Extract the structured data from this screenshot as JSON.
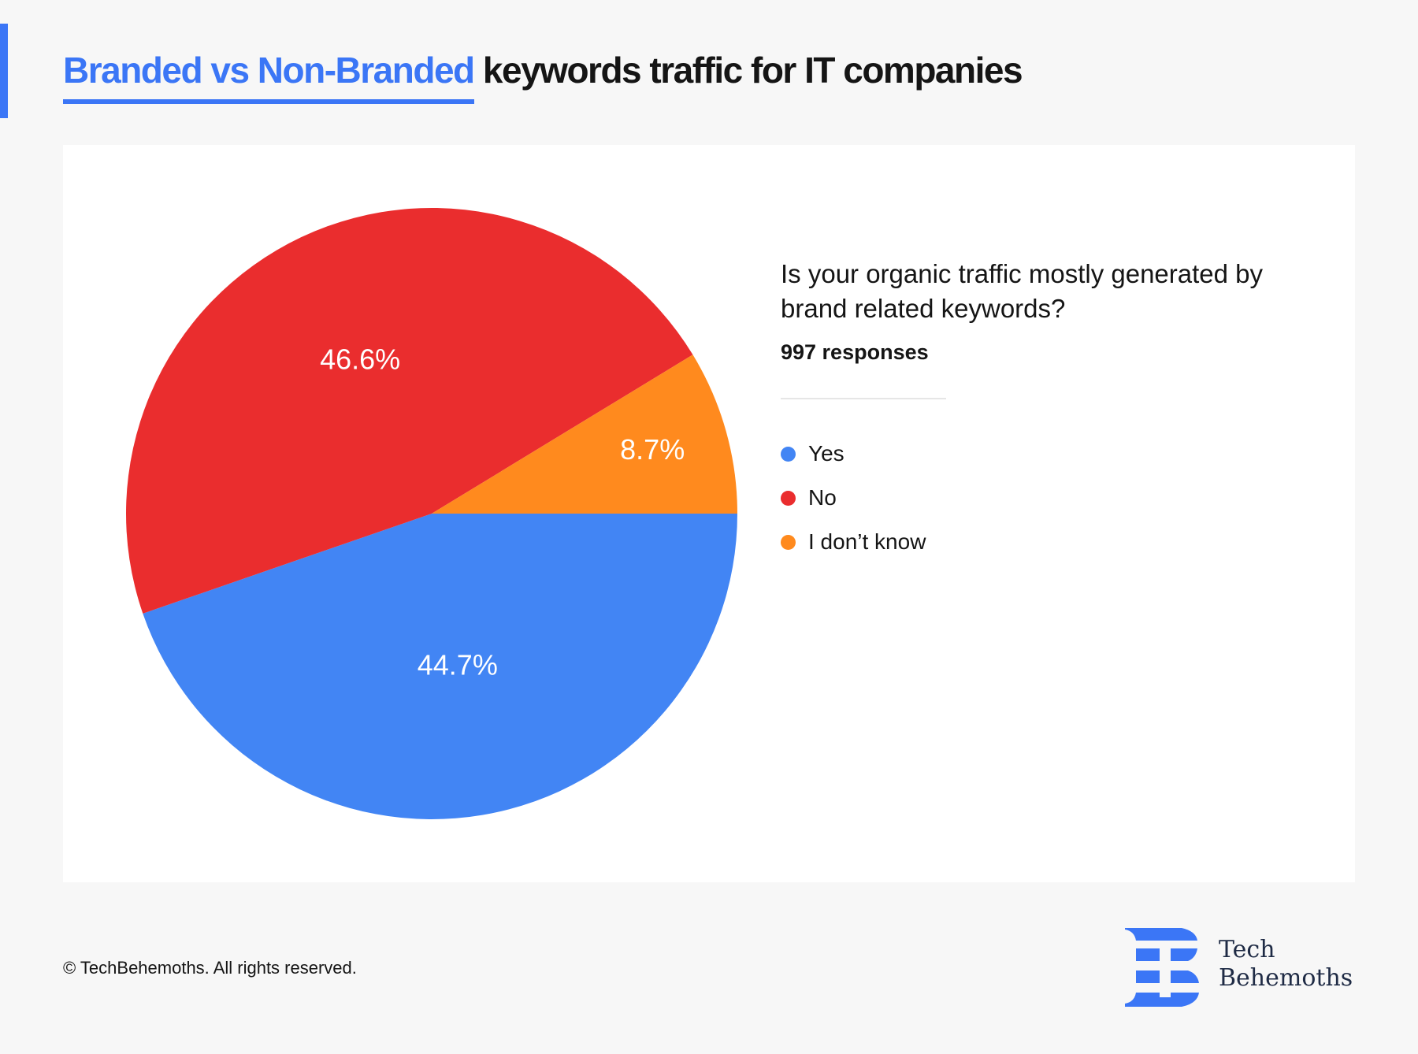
{
  "title": {
    "highlight": "Branded vs Non-Branded",
    "rest": " keywords traffic for IT companies"
  },
  "question": "Is your organic traffic mostly generated by brand related keywords?",
  "responses": "997 responses",
  "chart_data": {
    "type": "pie",
    "title": "Is your organic traffic mostly generated by brand related keywords?",
    "slices": [
      {
        "name": "Yes",
        "value": 44.7,
        "label": "44.7%",
        "color": "#4285f4"
      },
      {
        "name": "No",
        "value": 46.6,
        "label": "46.6%",
        "color": "#ea2d2e"
      },
      {
        "name": "I don’t know",
        "value": 8.7,
        "label": "8.7%",
        "color": "#ff8a1e"
      }
    ],
    "start": "3 o'clock",
    "direction": "clockwise",
    "legend": "right"
  },
  "footer": {
    "copyright": "© TechBehemoths. All rights reserved."
  },
  "logo": {
    "line1": "Tech",
    "line2": "Behemoths",
    "color": "#3b76f6"
  }
}
